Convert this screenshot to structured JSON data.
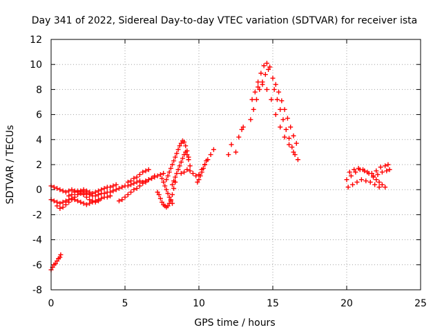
{
  "chart_data": {
    "type": "scatter",
    "title": "Day 341 of 2022, Sidereal Day-to-day VTEC variation (SDTVAR) for receiver ista",
    "xlabel": "GPS time / hours",
    "ylabel": "SDTVAR / TECUs",
    "xlim": [
      0,
      25
    ],
    "ylim": [
      -8,
      12
    ],
    "xticks": [
      0,
      5,
      10,
      15,
      20,
      25
    ],
    "yticks": [
      -8,
      -6,
      -4,
      -2,
      0,
      2,
      4,
      6,
      8,
      10,
      12
    ],
    "xtick_labels": [
      "0",
      "5",
      "10",
      "15",
      "20",
      "25"
    ],
    "ytick_labels": [
      "-8",
      "-6",
      "-4",
      "-2",
      "0",
      "2",
      "4",
      "6",
      "8",
      "10",
      "12"
    ],
    "grid": true,
    "marker": "plus",
    "color": "#ff0000",
    "series": [
      {
        "name": "s1",
        "x": [
          0.0,
          0.1,
          0.2,
          0.3,
          0.4,
          0.5,
          0.6,
          0.65
        ],
        "y": [
          -6.4,
          -6.2,
          -6.0,
          -5.9,
          -5.7,
          -5.5,
          -5.4,
          -5.2
        ]
      },
      {
        "name": "s2",
        "x": [
          0.0,
          0.2,
          0.4,
          0.6,
          0.8,
          1.0,
          1.2,
          1.4,
          1.6,
          1.8,
          2.0,
          2.2,
          2.4,
          2.6,
          2.8,
          3.0,
          3.2,
          3.4,
          3.6,
          3.8,
          4.0
        ],
        "y": [
          -0.8,
          -0.9,
          -1.0,
          -1.1,
          -1.0,
          -0.9,
          -0.8,
          -0.7,
          -0.8,
          -0.9,
          -1.0,
          -1.1,
          -1.2,
          -1.1,
          -1.0,
          -0.9,
          -0.8,
          -0.7,
          -0.6,
          -0.6,
          -0.5
        ]
      },
      {
        "name": "s3",
        "x": [
          0.0,
          0.2,
          0.4,
          0.6,
          0.8,
          1.0,
          1.2,
          1.4,
          1.6,
          1.8,
          2.0,
          2.2,
          2.4,
          2.6,
          2.8,
          3.0,
          3.2,
          3.4,
          3.6,
          3.8,
          4.0,
          4.2,
          4.4
        ],
        "y": [
          0.3,
          0.2,
          0.1,
          0.0,
          -0.1,
          -0.2,
          -0.1,
          0.0,
          -0.1,
          -0.2,
          -0.1,
          0.0,
          -0.1,
          -0.2,
          -0.3,
          -0.2,
          -0.1,
          0.0,
          0.1,
          0.2,
          0.2,
          0.3,
          0.4
        ]
      },
      {
        "name": "s4",
        "x": [
          0.4,
          0.6,
          0.8,
          1.0,
          1.2,
          1.4,
          1.6,
          1.8,
          2.0,
          2.2,
          2.4,
          2.6,
          2.8,
          3.0,
          3.2
        ],
        "y": [
          -1.3,
          -1.5,
          -1.4,
          -1.2,
          -1.0,
          -0.8,
          -0.6,
          -0.4,
          -0.3,
          -0.4,
          -0.6,
          -0.8,
          -0.9,
          -1.0,
          -0.9
        ]
      },
      {
        "name": "s5",
        "x": [
          1.2,
          1.4,
          1.6,
          1.8,
          2.0,
          2.2,
          2.4,
          2.6,
          2.8,
          3.0,
          3.2,
          3.4,
          3.6,
          3.8
        ],
        "y": [
          -0.5,
          -0.4,
          -0.2,
          -0.1,
          -0.1,
          -0.2,
          -0.3,
          -0.4,
          -0.5,
          -0.5,
          -0.4,
          -0.3,
          -0.3,
          -0.2
        ]
      },
      {
        "name": "s6",
        "x": [
          4.0,
          4.2,
          4.4,
          4.6,
          4.8,
          5.0,
          5.2,
          5.4,
          5.6,
          5.8,
          6.0,
          6.2,
          6.4,
          6.6,
          6.8,
          7.0,
          7.2,
          7.4,
          7.6
        ],
        "y": [
          -0.2,
          -0.1,
          0.0,
          0.1,
          0.2,
          0.3,
          0.3,
          0.4,
          0.5,
          0.6,
          0.7,
          0.6,
          0.7,
          0.8,
          0.9,
          1.0,
          1.1,
          1.2,
          1.3
        ]
      },
      {
        "name": "s7",
        "x": [
          4.6,
          4.8,
          5.0,
          5.2,
          5.4,
          5.6,
          5.8,
          6.0,
          6.2,
          6.4,
          6.6,
          6.8,
          7.0
        ],
        "y": [
          -0.9,
          -0.8,
          -0.6,
          -0.4,
          -0.2,
          0.0,
          0.1,
          0.3,
          0.5,
          0.6,
          0.8,
          0.9,
          1.1
        ]
      },
      {
        "name": "s8",
        "x": [
          5.2,
          5.4,
          5.6,
          5.8,
          6.0,
          6.2,
          6.4,
          6.6
        ],
        "y": [
          0.6,
          0.7,
          0.9,
          1.0,
          1.2,
          1.4,
          1.5,
          1.6
        ]
      },
      {
        "name": "s9",
        "x": [
          7.2,
          7.3,
          7.4,
          7.5,
          7.6,
          7.7,
          7.8,
          7.9,
          8.0,
          8.1,
          8.2,
          8.3,
          8.4
        ],
        "y": [
          -0.2,
          -0.4,
          -0.7,
          -1.0,
          -1.2,
          -1.3,
          -1.4,
          -1.3,
          -1.1,
          -0.8,
          -0.4,
          0.1,
          0.6
        ]
      },
      {
        "name": "s10",
        "x": [
          7.5,
          7.6,
          7.7,
          7.8,
          7.9,
          8.0,
          8.1,
          8.2
        ],
        "y": [
          0.9,
          0.6,
          0.3,
          0.0,
          -0.3,
          -0.6,
          -0.9,
          -1.1
        ]
      },
      {
        "name": "s11",
        "x": [
          7.8,
          7.9,
          8.0,
          8.1,
          8.2,
          8.3,
          8.4,
          8.5,
          8.6,
          8.7,
          8.8,
          8.9,
          9.0,
          9.1,
          9.2,
          9.3
        ],
        "y": [
          0.8,
          1.1,
          1.4,
          1.7,
          2.0,
          2.3,
          2.6,
          2.9,
          3.2,
          3.5,
          3.7,
          3.9,
          3.8,
          3.5,
          3.1,
          2.6
        ]
      },
      {
        "name": "s12",
        "x": [
          8.2,
          8.3,
          8.4,
          8.5,
          8.6,
          8.7,
          8.8,
          8.9,
          9.0,
          9.1,
          9.2,
          9.3,
          9.4
        ],
        "y": [
          0.4,
          0.7,
          1.0,
          1.3,
          1.6,
          1.9,
          2.2,
          2.5,
          2.8,
          3.0,
          2.8,
          2.4,
          1.9
        ]
      },
      {
        "name": "s13",
        "x": [
          8.8,
          9.0,
          9.2,
          9.4,
          9.6,
          9.8,
          10.0,
          10.2,
          10.4,
          10.6,
          10.8,
          11.0
        ],
        "y": [
          1.3,
          1.4,
          1.6,
          1.5,
          1.3,
          1.1,
          1.2,
          1.6,
          2.0,
          2.4,
          2.8,
          3.2
        ]
      },
      {
        "name": "s14",
        "x": [
          9.9,
          10.0,
          10.1,
          10.2,
          10.3,
          10.4,
          10.5
        ],
        "y": [
          0.6,
          0.8,
          1.1,
          1.4,
          1.7,
          2.0,
          2.3
        ]
      },
      {
        "name": "s15",
        "x": [
          12.0,
          12.2,
          12.5,
          12.7,
          12.9,
          13.0
        ],
        "y": [
          2.8,
          3.6,
          3.0,
          4.2,
          4.8,
          5.0
        ]
      },
      {
        "name": "s16",
        "x": [
          13.6,
          13.8,
          14.0,
          14.2,
          14.4,
          14.6,
          14.8
        ],
        "y": [
          7.2,
          7.8,
          8.6,
          9.3,
          9.9,
          10.1,
          9.8
        ]
      },
      {
        "name": "s17",
        "x": [
          13.5,
          13.7,
          13.9,
          14.1,
          14.3,
          14.5,
          14.7
        ],
        "y": [
          5.6,
          6.4,
          7.2,
          8.0,
          8.6,
          9.2,
          9.6
        ]
      },
      {
        "name": "s18",
        "x": [
          14.0,
          14.3,
          14.6,
          14.9,
          15.2,
          15.5,
          15.8,
          16.1,
          16.4,
          16.7
        ],
        "y": [
          8.2,
          8.4,
          8.0,
          7.2,
          6.0,
          5.0,
          4.2,
          3.6,
          3.0,
          2.4
        ]
      },
      {
        "name": "s19",
        "x": [
          15.0,
          15.2,
          15.4,
          15.6,
          15.8,
          16.0,
          16.2,
          16.4,
          16.6
        ],
        "y": [
          8.9,
          8.4,
          7.8,
          7.1,
          6.4,
          5.7,
          5.0,
          4.3,
          3.7
        ]
      },
      {
        "name": "s20",
        "x": [
          15.1,
          15.3,
          15.5,
          15.7,
          15.9,
          16.1,
          16.3,
          16.5
        ],
        "y": [
          8.0,
          7.2,
          6.4,
          5.6,
          4.8,
          4.1,
          3.4,
          2.8
        ]
      },
      {
        "name": "s21",
        "x": [
          20.0,
          20.3,
          20.6,
          20.9,
          21.2,
          21.5,
          21.8,
          22.1,
          22.4,
          22.7,
          22.9
        ],
        "y": [
          0.8,
          1.1,
          1.4,
          1.6,
          1.5,
          1.3,
          1.1,
          1.2,
          1.4,
          1.5,
          1.6
        ]
      },
      {
        "name": "s22",
        "x": [
          20.1,
          20.4,
          20.7,
          21.0,
          21.3,
          21.6,
          21.9,
          22.2
        ],
        "y": [
          0.2,
          0.4,
          0.6,
          0.8,
          0.7,
          0.6,
          0.4,
          0.2
        ]
      },
      {
        "name": "s23",
        "x": [
          20.2,
          20.5,
          20.8,
          21.1,
          21.4,
          21.7,
          22.0,
          22.3,
          22.6,
          22.8
        ],
        "y": [
          1.4,
          1.6,
          1.7,
          1.6,
          1.4,
          1.3,
          1.5,
          1.8,
          1.9,
          2.0
        ]
      },
      {
        "name": "s24",
        "x": [
          21.8,
          22.0,
          22.2,
          22.4,
          22.6
        ],
        "y": [
          1.0,
          0.8,
          0.6,
          0.4,
          0.2
        ]
      }
    ]
  }
}
